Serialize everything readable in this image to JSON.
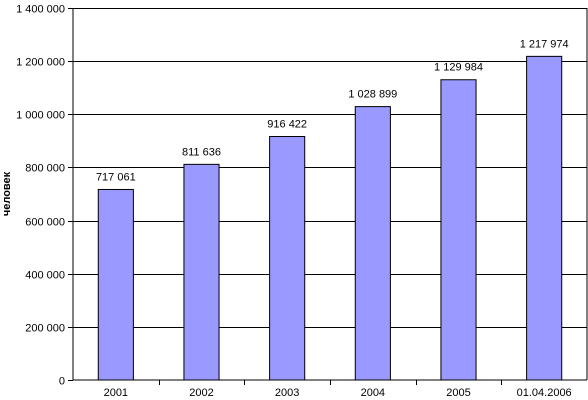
{
  "chart_data": {
    "type": "bar",
    "categories": [
      "2001",
      "2002",
      "2003",
      "2004",
      "2005",
      "01.04.2006"
    ],
    "values": [
      717061,
      811636,
      916422,
      1028899,
      1129984,
      1217974
    ],
    "value_labels": [
      "717 061",
      "811 636",
      "916 422",
      "1 028 899",
      "1 129 984",
      "1 217 974"
    ],
    "ylabel": "человек",
    "xlabel": "",
    "title": "",
    "ylim": [
      0,
      1400000
    ],
    "yticks": [
      0,
      200000,
      400000,
      600000,
      800000,
      1000000,
      1200000,
      1400000
    ],
    "ytick_labels": [
      "0",
      "200 000",
      "400 000",
      "600 000",
      "800 000",
      "1 000 000",
      "1 200 000",
      "1 400 000"
    ],
    "grid": true,
    "legend": "none",
    "colors": {
      "bar_fill": "#9999ff",
      "bar_stroke": "#000000",
      "grid": "#000000",
      "background": "#ffffff"
    }
  }
}
